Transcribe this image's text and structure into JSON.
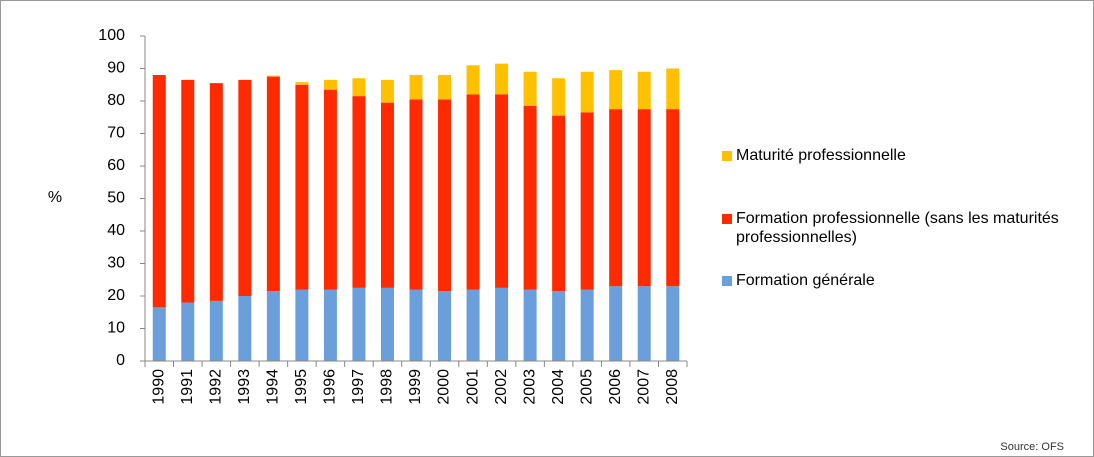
{
  "chart_data": {
    "type": "stacked_bar",
    "y_label": "%",
    "source": "Source: OFS",
    "categories": [
      "1990",
      "1991",
      "1992",
      "1993",
      "1994",
      "1995",
      "1996",
      "1997",
      "1998",
      "1999",
      "2000",
      "2001",
      "2002",
      "2003",
      "2004",
      "2005",
      "2006",
      "2007",
      "2008"
    ],
    "series": [
      {
        "name": "Formation générale",
        "color": "#6a9fdb",
        "values": [
          16.5,
          18,
          18.5,
          20,
          21.5,
          22,
          22,
          22.5,
          22.5,
          22,
          21.5,
          22,
          22.5,
          22,
          21.5,
          22,
          23,
          23,
          23
        ]
      },
      {
        "name": "Formation professionnelle (sans les maturités professionnelles)",
        "color": "#ff2a00",
        "values": [
          71.5,
          68.5,
          67,
          66.5,
          66,
          63,
          61.5,
          59,
          57,
          58.5,
          59,
          60,
          59.5,
          56.5,
          54,
          54.5,
          54.5,
          54.5,
          54.5
        ]
      },
      {
        "name": "Maturité professionnelle",
        "color": "#ffc000",
        "values": [
          0,
          0,
          0,
          0,
          0.3,
          0.8,
          3,
          5.5,
          7,
          7.5,
          7.5,
          9,
          9.5,
          10.5,
          11.5,
          12.5,
          12,
          11.5,
          12.5
        ]
      }
    ],
    "ylim": [
      0,
      100
    ],
    "yticks": [
      0,
      10,
      20,
      30,
      40,
      50,
      60,
      70,
      80,
      90,
      100
    ],
    "grid": false,
    "legend": "right"
  }
}
